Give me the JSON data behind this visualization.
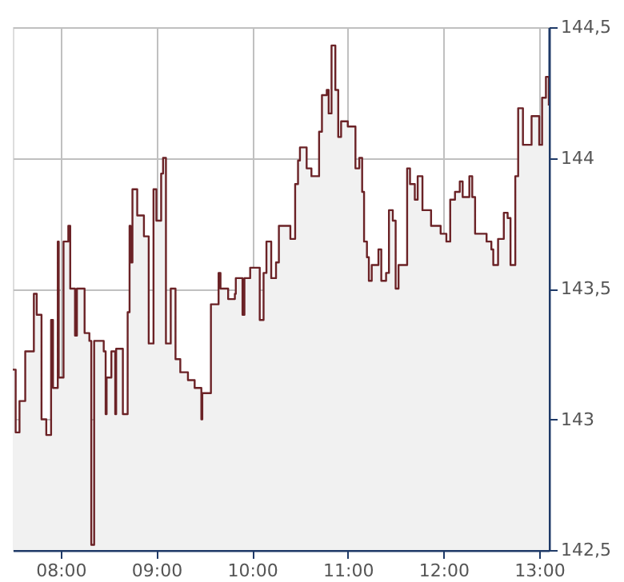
{
  "chart_data": {
    "type": "area",
    "grid": true,
    "xlim": [
      7.5,
      13.1
    ],
    "ylim": [
      142.5,
      144.5
    ],
    "xticks": [
      {
        "value": 8,
        "label": "08:00"
      },
      {
        "value": 9,
        "label": "09:00"
      },
      {
        "value": 10,
        "label": "10:00"
      },
      {
        "value": 11,
        "label": "11:00"
      },
      {
        "value": 12,
        "label": "12:00"
      },
      {
        "value": 13,
        "label": "13:00"
      }
    ],
    "yticks": [
      {
        "value": 142.5,
        "label": "142,5"
      },
      {
        "value": 143,
        "label": "143"
      },
      {
        "value": 143.5,
        "label": "143,5"
      },
      {
        "value": 144,
        "label": "144"
      },
      {
        "value": 144.5,
        "label": "144,5"
      }
    ],
    "x": [
      7.5,
      7.53,
      7.53,
      7.57,
      7.57,
      7.63,
      7.63,
      7.7,
      7.7,
      7.72,
      7.72,
      7.75,
      7.75,
      7.8,
      7.8,
      7.85,
      7.85,
      7.9,
      7.9,
      7.92,
      7.92,
      7.97,
      7.97,
      7.98,
      7.98,
      8.03,
      8.03,
      8.08,
      8.08,
      8.1,
      8.1,
      8.15,
      8.15,
      8.17,
      8.17,
      8.23,
      8.23,
      8.25,
      8.25,
      8.3,
      8.3,
      8.32,
      8.32,
      8.35,
      8.35,
      8.4,
      8.4,
      8.45,
      8.45,
      8.47,
      8.47,
      8.48,
      8.48,
      8.53,
      8.53,
      8.57,
      8.57,
      8.58,
      8.58,
      8.65,
      8.65,
      8.7,
      8.7,
      8.72,
      8.72,
      8.73,
      8.73,
      8.75,
      8.75,
      8.8,
      8.8,
      8.87,
      8.87,
      8.92,
      8.92,
      8.97,
      8.97,
      9.0,
      9.0,
      9.05,
      9.05,
      9.07,
      9.07,
      9.1,
      9.1,
      9.15,
      9.15,
      9.2,
      9.2,
      9.25,
      9.25,
      9.33,
      9.33,
      9.4,
      9.4,
      9.47,
      9.47,
      9.48,
      9.48,
      9.57,
      9.57,
      9.65,
      9.65,
      9.67,
      9.67,
      9.75,
      9.75,
      9.82,
      9.82,
      9.83,
      9.83,
      9.9,
      9.9,
      9.92,
      9.92,
      9.98,
      9.98,
      10.08,
      10.08,
      10.12,
      10.12,
      10.15,
      10.15,
      10.2,
      10.2,
      10.25,
      10.25,
      10.28,
      10.28,
      10.4,
      10.4,
      10.45,
      10.45,
      10.48,
      10.48,
      10.5,
      10.5,
      10.57,
      10.57,
      10.62,
      10.62,
      10.7,
      10.7,
      10.73,
      10.73,
      10.78,
      10.78,
      10.8,
      10.8,
      10.83,
      10.83,
      10.87,
      10.87,
      10.9,
      10.9,
      10.93,
      10.93,
      11.0,
      11.0,
      11.07,
      11.07,
      11.08,
      11.08,
      11.12,
      11.12,
      11.15,
      11.15,
      11.17,
      11.17,
      11.2,
      11.2,
      11.22,
      11.22,
      11.25,
      11.25,
      11.32,
      11.32,
      11.35,
      11.35,
      11.4,
      11.4,
      11.43,
      11.43,
      11.47,
      11.47,
      11.5,
      11.5,
      11.53,
      11.53,
      11.62,
      11.62,
      11.65,
      11.65,
      11.7,
      11.7,
      11.73,
      11.73,
      11.78,
      11.78,
      11.87,
      11.87,
      11.97,
      11.97,
      12.03,
      12.03,
      12.07,
      12.07,
      12.12,
      12.12,
      12.17,
      12.17,
      12.2,
      12.2,
      12.27,
      12.27,
      12.3,
      12.3,
      12.33,
      12.33,
      12.4,
      12.4,
      12.45,
      12.45,
      12.5,
      12.5,
      12.52,
      12.52,
      12.57,
      12.57,
      12.63,
      12.63,
      12.67,
      12.67,
      12.7,
      12.7,
      12.75,
      12.75,
      12.78,
      12.78,
      12.83,
      12.83,
      12.88,
      12.88,
      12.92,
      12.92,
      12.97,
      12.97,
      13.0,
      13.0,
      13.03,
      13.03,
      13.07,
      13.07,
      13.1,
      13.1
    ],
    "series": [
      {
        "color": "#6b2226",
        "values": [
          143.19,
          143.19,
          142.95,
          142.95,
          143.07,
          143.07,
          143.26,
          143.26,
          143.26,
          143.26,
          143.48,
          143.48,
          143.4,
          143.4,
          143.0,
          143.0,
          142.94,
          142.94,
          143.38,
          143.38,
          143.12,
          143.12,
          143.68,
          143.68,
          143.16,
          143.16,
          143.68,
          143.68,
          143.74,
          143.74,
          143.5,
          143.5,
          143.32,
          143.32,
          143.5,
          143.5,
          143.5,
          143.5,
          143.33,
          143.33,
          143.3,
          143.3,
          142.52,
          142.52,
          143.3,
          143.3,
          143.3,
          143.3,
          143.26,
          143.26,
          143.02,
          143.02,
          143.16,
          143.16,
          143.26,
          143.26,
          143.02,
          143.02,
          143.27,
          143.27,
          143.02,
          143.02,
          143.41,
          143.41,
          143.74,
          143.74,
          143.6,
          143.6,
          143.88,
          143.88,
          143.78,
          143.78,
          143.7,
          143.7,
          143.29,
          143.29,
          143.88,
          143.88,
          143.76,
          143.76,
          143.94,
          143.94,
          144.0,
          144.0,
          143.29,
          143.29,
          143.5,
          143.5,
          143.23,
          143.23,
          143.18,
          143.18,
          143.15,
          143.15,
          143.12,
          143.12,
          143.0,
          143.0,
          143.1,
          143.1,
          143.44,
          143.44,
          143.56,
          143.56,
          143.5,
          143.5,
          143.46,
          143.46,
          143.48,
          143.48,
          143.54,
          143.54,
          143.4,
          143.4,
          143.54,
          143.54,
          143.58,
          143.58,
          143.38,
          143.38,
          143.56,
          143.56,
          143.68,
          143.68,
          143.54,
          143.54,
          143.6,
          143.6,
          143.74,
          143.74,
          143.69,
          143.69,
          143.9,
          143.9,
          143.99,
          143.99,
          144.04,
          144.04,
          143.96,
          143.96,
          143.93,
          143.93,
          144.1,
          144.1,
          144.24,
          144.24,
          144.26,
          144.26,
          144.17,
          144.17,
          144.43,
          144.43,
          144.26,
          144.26,
          144.08,
          144.08,
          144.14,
          144.14,
          144.12,
          144.12,
          144.12,
          144.12,
          143.96,
          143.96,
          144.0,
          144.0,
          143.87,
          143.87,
          143.68,
          143.68,
          143.62,
          143.62,
          143.53,
          143.53,
          143.59,
          143.59,
          143.65,
          143.65,
          143.53,
          143.53,
          143.56,
          143.56,
          143.8,
          143.8,
          143.76,
          143.76,
          143.5,
          143.5,
          143.59,
          143.59,
          143.96,
          143.96,
          143.9,
          143.9,
          143.84,
          143.84,
          143.93,
          143.93,
          143.8,
          143.8,
          143.74,
          143.74,
          143.71,
          143.71,
          143.68,
          143.68,
          143.84,
          143.84,
          143.87,
          143.87,
          143.91,
          143.91,
          143.85,
          143.85,
          143.93,
          143.93,
          143.85,
          143.85,
          143.71,
          143.71,
          143.71,
          143.71,
          143.68,
          143.68,
          143.65,
          143.65,
          143.59,
          143.59,
          143.69,
          143.69,
          143.79,
          143.79,
          143.77,
          143.77,
          143.59,
          143.59,
          143.93,
          143.93,
          144.19,
          144.19,
          144.05,
          144.05,
          144.05,
          144.05,
          144.16,
          144.16,
          144.16,
          144.16,
          144.05,
          144.05,
          144.23,
          144.23,
          144.31,
          144.31,
          144.2
        ]
      }
    ]
  }
}
